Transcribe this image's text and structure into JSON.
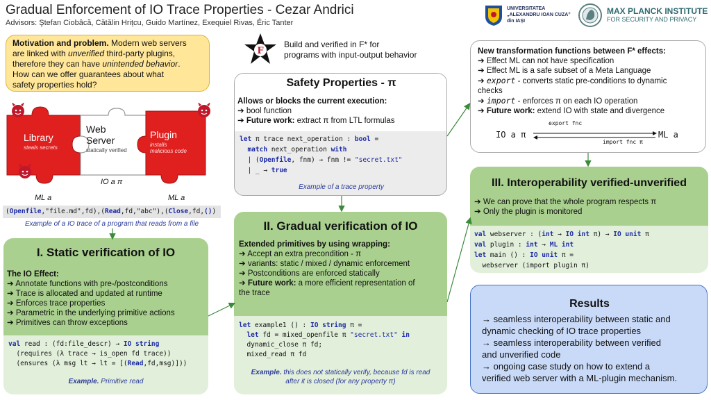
{
  "header": {
    "title": "Gradual Enforcement of IO Trace Properties - Cezar Andrici",
    "advisors": "Advisors: Ştefan Ciobâcă, Cătălin Hrițcu, Guido Martínez, Exequiel Rivas, Éric Tanter",
    "uaic_logo_text": [
      "UNIVERSITATEA",
      "„ALEXANDRU IOAN CUZA”",
      "din IAȘI"
    ],
    "mpi_logo_text": [
      "MAX PLANCK INSTITUTE",
      "FOR SECURITY AND PRIVACY"
    ]
  },
  "motivation": {
    "lead": "Motivation and problem.",
    "lines": [
      [
        "Modern web servers",
        ""
      ],
      [
        "are linked with ",
        "unverified",
        " third-party plugins,"
      ],
      [
        "therefore they can have ",
        "unintended behavior",
        "."
      ],
      [
        "How can we offer guarantees about what",
        ""
      ],
      [
        "safety properties hold?",
        ""
      ]
    ]
  },
  "fstar": {
    "logo_letter": "F",
    "text": [
      "Build and verified in F* for",
      "programs with input-output behavior"
    ]
  },
  "puzzle": {
    "library": "Library",
    "library_sub": "steals secrets",
    "webserver": [
      "Web",
      "Server"
    ],
    "webserver_sub": "statically verified",
    "plugin": "Plugin",
    "plugin_sub": [
      "installs",
      "malicious code"
    ],
    "label_left": "ML a",
    "label_mid": "IO a π",
    "label_right": "ML a",
    "colors": {
      "red": "#e01f1f",
      "white": "#ffffff",
      "outline": "#999999"
    }
  },
  "trace": {
    "parts": [
      [
        "(",
        ""
      ],
      [
        "Openfile",
        "kw"
      ],
      [
        ",\"file.md\",fd),(",
        ""
      ],
      [
        "Read",
        "kw"
      ],
      [
        ",fd,\"abc\"),(",
        ""
      ],
      [
        "Close",
        "kw"
      ],
      [
        ",fd,",
        ""
      ],
      [
        "()",
        "kw"
      ],
      [
        ")",
        ""
      ]
    ],
    "caption": "Example of a IO trace of a program that reads from a file"
  },
  "safety": {
    "title": "Safety Properties - π",
    "subtitle": "Allows or blocks the current execution:",
    "bullets": [
      {
        "bold": "",
        "text": "bool function"
      },
      {
        "bold": "Future work:",
        "text": " extract π from LTL formulas"
      }
    ],
    "code": [
      [
        [
          "let",
          "kw"
        ],
        [
          " π trace next_operation : ",
          ""
        ],
        [
          "bool",
          "kw"
        ],
        [
          " =",
          ""
        ]
      ],
      [
        [
          "  match",
          "kw"
        ],
        [
          " next_operation ",
          ""
        ],
        [
          "with",
          "kw"
        ]
      ],
      [
        [
          "  | (",
          ""
        ],
        [
          "Openfile",
          "kw"
        ],
        [
          ", fnm) → fnm != ",
          ""
        ],
        [
          "\"secret.txt\"",
          "str"
        ]
      ],
      [
        [
          "  | _ → ",
          ""
        ],
        [
          "true",
          "kw"
        ]
      ]
    ],
    "caption": "Example of a trace property"
  },
  "static": {
    "title": "I. Static verification of IO",
    "subtitle": "The IO Effect:",
    "bullets": [
      "Annotate functions with pre-/postconditions",
      "Trace is allocated and updated at runtime",
      "Enforces trace properties",
      "Parametric in the underlying primitive actions",
      "Primitives can throw exceptions"
    ],
    "code": [
      [
        [
          "val",
          "kw"
        ],
        [
          " read : (fd:file_descr) → ",
          ""
        ],
        [
          "IO string",
          "kw"
        ]
      ],
      [
        [
          "  (requires (λ trace → is_open fd trace))",
          ""
        ]
      ],
      [
        [
          "  (ensures (λ msg lt → lt = [(",
          ""
        ],
        [
          "Read",
          "kw"
        ],
        [
          ",fd,msg)]))",
          ""
        ]
      ]
    ],
    "caption_bold": "Example.",
    "caption_rest": " Primitive read"
  },
  "gradual": {
    "title": "II. Gradual verification of IO",
    "subtitle": "Extended primitives by using wrapping:",
    "bullets": [
      {
        "bold": "",
        "text": "Accept an extra precondition - π"
      },
      {
        "bold": "",
        "text": "variants: static / mixed / dynamic enforcement"
      },
      {
        "bold": "",
        "text": "Postconditions are enforced statically"
      },
      {
        "bold": "Future work:",
        "text": " a more efficient representation of"
      }
    ],
    "bullet_tail": "the trace",
    "code": [
      [
        [
          "let",
          "kw"
        ],
        [
          " example1 () : ",
          ""
        ],
        [
          "IO string",
          "kw"
        ],
        [
          " π =",
          ""
        ]
      ],
      [
        [
          "  let",
          "kw"
        ],
        [
          " fd = mixed_openfile π ",
          ""
        ],
        [
          "\"secret.txt\"",
          "str"
        ],
        [
          " in",
          "kw"
        ]
      ],
      [
        [
          "  dynamic_close π fd;",
          ""
        ]
      ],
      [
        [
          "  mixed_read π fd",
          ""
        ]
      ]
    ],
    "caption_bold": "Example.",
    "caption_l1a": " this does not statically verify, because ",
    "caption_fd": "fd",
    "caption_l1b": " is read",
    "caption_l2": "after it is closed (for any property π)"
  },
  "transform": {
    "title": "New transformation functions between F* effects:",
    "bullets": [
      {
        "code": "",
        "bold": "",
        "text": "Effect ML can not have specification"
      },
      {
        "code": "",
        "bold": "",
        "text": "Effect ML is a safe subset of a Meta Language"
      },
      {
        "code": "export",
        "bold": "",
        "text": " - converts static pre-conditions to dynamic"
      }
    ],
    "tail": "checks",
    "bullets2": [
      {
        "code": "import",
        "bold": "",
        "text": " - enforces π on each IO operation"
      },
      {
        "code": "",
        "bold": "Future work:",
        "text": " extend IO with state and divergence"
      }
    ],
    "diagram_left": "IO a π",
    "diagram_right": "ML a",
    "export_label": "export fnc",
    "import_label": "import fnc π"
  },
  "interop": {
    "title": "III. Interoperability verified-unverified",
    "bullets": [
      "We can prove that the whole program respects π",
      "Only the plugin is monitored"
    ],
    "code": [
      [
        [
          "val",
          "kw"
        ],
        [
          " webserver : (",
          ""
        ],
        [
          "int",
          "kw"
        ],
        [
          " → ",
          ""
        ],
        [
          "IO int",
          "kw"
        ],
        [
          " π) → ",
          ""
        ],
        [
          "IO unit",
          "kw"
        ],
        [
          " π",
          ""
        ]
      ],
      [
        [
          "val",
          "kw"
        ],
        [
          " plugin : ",
          ""
        ],
        [
          "int",
          "kw"
        ],
        [
          " → ",
          ""
        ],
        [
          "ML int",
          "kw"
        ]
      ],
      [
        [
          "let",
          "kw"
        ],
        [
          " main () : ",
          ""
        ],
        [
          "IO unit",
          "kw"
        ],
        [
          " π =",
          ""
        ]
      ],
      [
        [
          "  webserver (import plugin π)",
          ""
        ]
      ]
    ]
  },
  "results": {
    "title": "Results",
    "lines": [
      "→ seamless interoperability between static and",
      "dynamic checking of IO trace properties",
      "→ seamless interoperability between verified",
      "and unverified code",
      "→ ongoing case study on how to extend a",
      "verified web server with a ML-plugin mechanism."
    ]
  },
  "colors": {
    "green_head": "#a9d08e",
    "green_body": "#e2efda",
    "green_border": "#70ad47",
    "grey_body": "#ececec",
    "yellow": "#ffe699",
    "yellow_border": "#d9b340",
    "blue_fill": "#c9daf8",
    "blue_border": "#4472c4",
    "arrow": "#3a8a3a"
  }
}
